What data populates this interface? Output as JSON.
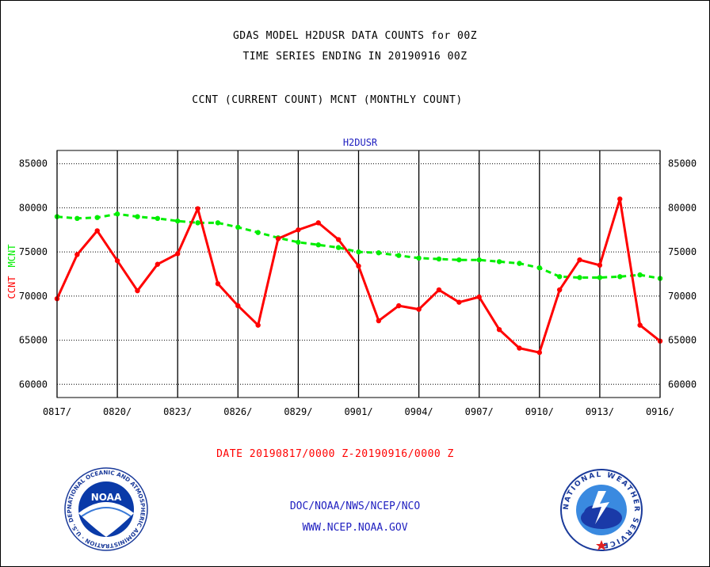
{
  "titles": {
    "line1": "GDAS MODEL H2DUSR DATA COUNTS for 00Z",
    "line2": "TIME SERIES ENDING IN 20190916 00Z",
    "line3": "CCNT (CURRENT COUNT) MCNT (MONTHLY COUNT)"
  },
  "chart_data": {
    "type": "line",
    "title": "H2DUSR",
    "ylabel_ccnt": "CCNT",
    "ylabel_mcnt": "MCNT",
    "ylim": [
      58500,
      86500
    ],
    "yticks": [
      60000,
      65000,
      70000,
      75000,
      80000,
      85000
    ],
    "ytick_labels": [
      "60000",
      "65000",
      "70000",
      "75000",
      "80000",
      "85000"
    ],
    "xtick_labels": [
      "0817/",
      "0820/",
      "0823/",
      "0826/",
      "0829/",
      "0901/",
      "0904/",
      "0907/",
      "0910/",
      "0913/",
      "0916/"
    ],
    "x": [
      "0817",
      "0818",
      "0819",
      "0820",
      "0821",
      "0822",
      "0823",
      "0824",
      "0825",
      "0826",
      "0827",
      "0828",
      "0829",
      "0830",
      "0831",
      "0901",
      "0902",
      "0903",
      "0904",
      "0905",
      "0906",
      "0907",
      "0908",
      "0909",
      "0910",
      "0911",
      "0912",
      "0913",
      "0914",
      "0915",
      "0916"
    ],
    "grid": true,
    "series": [
      {
        "name": "CCNT",
        "color": "#ff0000",
        "style": "solid",
        "values": [
          69700,
          74700,
          77400,
          74000,
          70600,
          73600,
          74800,
          79900,
          71400,
          68900,
          66700,
          76500,
          77500,
          78300,
          76400,
          73400,
          67200,
          68900,
          68500,
          70700,
          69300,
          69900,
          66200,
          64100,
          63600,
          70700,
          74100,
          73500,
          81000,
          66700,
          64900
        ]
      },
      {
        "name": "MCNT",
        "color": "#00ee00",
        "style": "dashed",
        "values": [
          79000,
          78800,
          78900,
          79300,
          79000,
          78800,
          78500,
          78300,
          78300,
          77800,
          77200,
          76600,
          76100,
          75800,
          75500,
          75000,
          74900,
          74600,
          74300,
          74200,
          74100,
          74100,
          73900,
          73700,
          73200,
          72200,
          72100,
          72100,
          72200,
          72400,
          72000
        ]
      }
    ]
  },
  "date_range": "DATE 20190817/0000 Z-20190916/0000 Z",
  "footer": {
    "org": "DOC/NOAA/NWS/NCEP/NCO",
    "url": "WWW.NCEP.NOAA.GOV"
  },
  "logos": {
    "noaa_text": "NOAA",
    "noaa_ring": "NATIONAL OCEANIC AND ATMOSPHERIC ADMINISTRATION · U.S. DEPARTMENT OF COMMERCE ·",
    "nws_ring": "NATIONAL WEATHER SERVICE"
  },
  "colors": {
    "ccnt": "#ff0000",
    "mcnt": "#00ee00",
    "axis_title": "#2020c0",
    "grid": "#000000"
  }
}
